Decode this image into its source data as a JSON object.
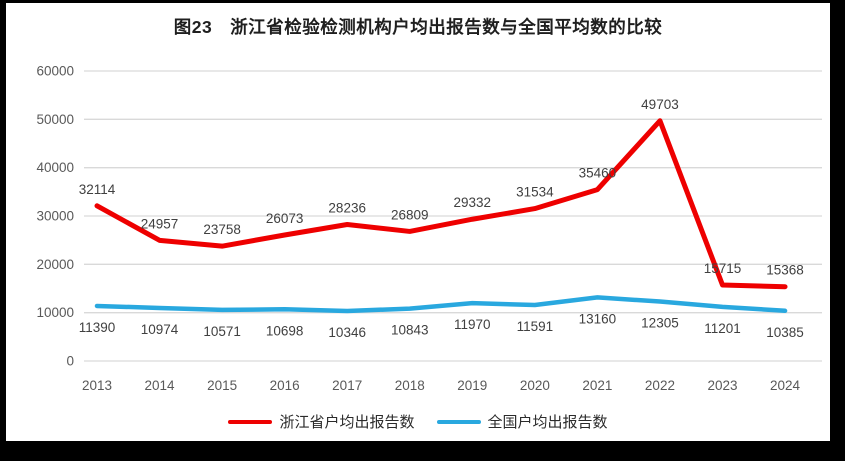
{
  "title": "图23　浙江省检验检测机构户均出报告数与全国平均数的比较",
  "chart_data": {
    "type": "line",
    "categories": [
      "2013",
      "2014",
      "2015",
      "2016",
      "2017",
      "2018",
      "2019",
      "2020",
      "2021",
      "2022",
      "2023",
      "2024"
    ],
    "series": [
      {
        "name": "浙江省户均出报告数",
        "color": "#ee0000",
        "values": [
          32114,
          24957,
          23758,
          26073,
          28236,
          26809,
          29332,
          31534,
          35460,
          49703,
          15715,
          15368
        ]
      },
      {
        "name": "全国户均出报告数",
        "color": "#29a8df",
        "values": [
          11390,
          10974,
          10571,
          10698,
          10346,
          10843,
          11970,
          11591,
          13160,
          12305,
          11201,
          10385
        ]
      }
    ],
    "title": "图23　浙江省检验检测机构户均出报告数与全国平均数的比较",
    "xlabel": "",
    "ylabel": "",
    "ylim": [
      0,
      60000
    ],
    "yticks": [
      0,
      10000,
      20000,
      30000,
      40000,
      50000,
      60000
    ],
    "grid": true,
    "legend_position": "bottom",
    "data_labels": true
  },
  "colors": {
    "zhejiang_line": "#ee0000",
    "national_line": "#29a8df",
    "gridline": "#d9d9d9",
    "axis_text": "#595959",
    "data_label_text": "#404040",
    "frame": "#000000"
  }
}
